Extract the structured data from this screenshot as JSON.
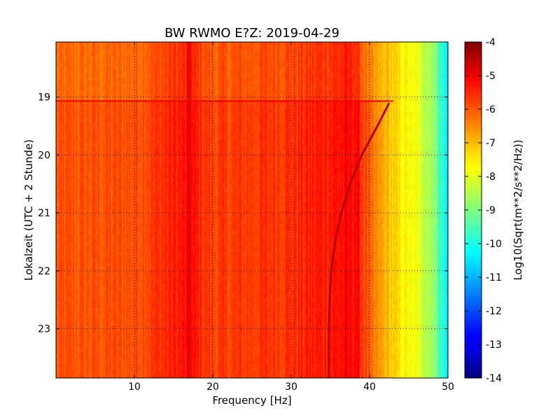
{
  "chart_data": {
    "type": "heatmap",
    "title": "BW RWMO E?Z: 2019-04-29",
    "xlabel": "Frequency [Hz]",
    "ylabel": "Lokalzeit (UTC + 2 Stunde)",
    "xlim": [
      0,
      50
    ],
    "ylim": [
      18.05,
      23.85
    ],
    "y_inverted": true,
    "x_ticks": [
      "10",
      "20",
      "30",
      "40",
      "50"
    ],
    "x_tick_values": [
      10,
      20,
      30,
      40,
      50
    ],
    "y_ticks": [
      "19",
      "20",
      "21",
      "22",
      "23"
    ],
    "y_tick_values": [
      19,
      20,
      21,
      22,
      23
    ],
    "grid": true,
    "colorbar": {
      "label": "Log10(Sqrt(m**2/s**2/Hz))",
      "range": [
        -14,
        -4
      ],
      "ticks": [
        "-4",
        "-5",
        "-6",
        "-7",
        "-8",
        "-9",
        "-10",
        "-11",
        "-12",
        "-13",
        "-14"
      ],
      "tick_values": [
        -4,
        -5,
        -6,
        -7,
        -8,
        -9,
        -10,
        -11,
        -12,
        -13,
        -14
      ],
      "colormap": "jet"
    },
    "features": {
      "noise_floor_by_frequency": [
        {
          "hz": 0,
          "value": -6.1
        },
        {
          "hz": 10,
          "value": -6.0
        },
        {
          "hz": 17,
          "value": -5.4
        },
        {
          "hz": 20,
          "value": -5.9
        },
        {
          "hz": 30,
          "value": -5.7
        },
        {
          "hz": 38,
          "value": -5.3
        },
        {
          "hz": 40,
          "value": -6.4
        },
        {
          "hz": 42,
          "value": -7.0
        },
        {
          "hz": 44,
          "value": -7.6
        },
        {
          "hz": 46,
          "value": -8.0
        },
        {
          "hz": 48,
          "value": -8.6
        },
        {
          "hz": 50,
          "value": -10.5
        }
      ],
      "step_change_hour": 19.07,
      "tonal_curve": [
        {
          "hour": 19.1,
          "hz": 42.5
        },
        {
          "hour": 19.5,
          "hz": 41.0
        },
        {
          "hour": 20.0,
          "hz": 39.0
        },
        {
          "hour": 20.5,
          "hz": 37.5
        },
        {
          "hour": 21.0,
          "hz": 36.4
        },
        {
          "hour": 21.5,
          "hz": 35.6
        },
        {
          "hour": 22.0,
          "hz": 35.1
        },
        {
          "hour": 22.5,
          "hz": 34.9
        },
        {
          "hour": 23.0,
          "hz": 34.8
        },
        {
          "hour": 23.85,
          "hz": 34.8
        }
      ]
    }
  }
}
